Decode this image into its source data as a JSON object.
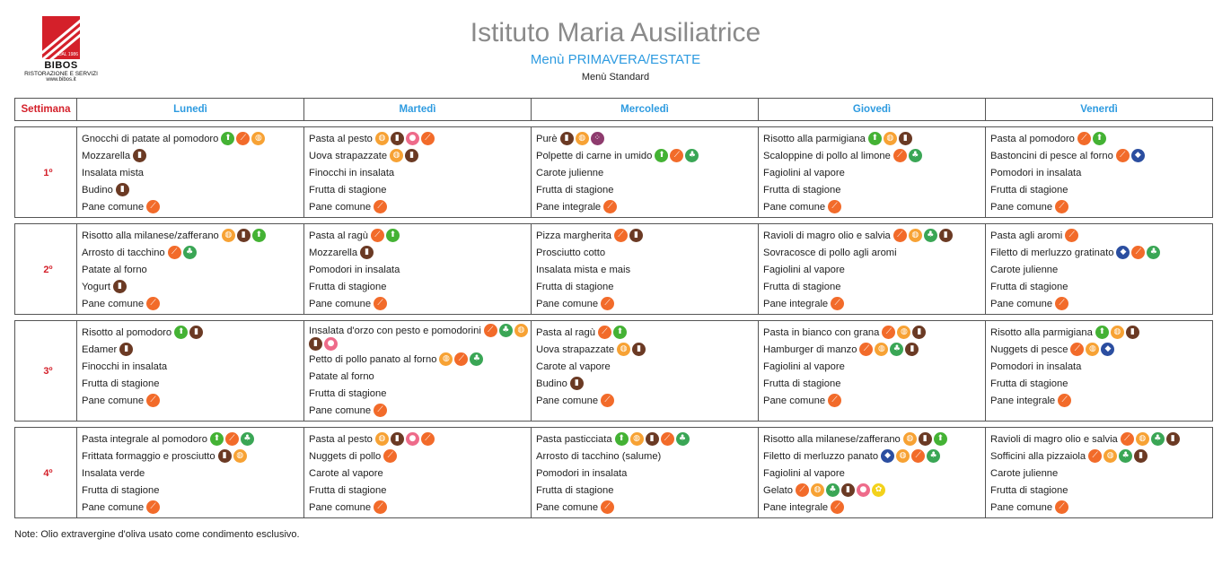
{
  "logo": {
    "badge": "DAL 1986",
    "name": "BIBOS",
    "sub": "RISTORAZIONE E SERVIZI",
    "web": "www.bibos.it"
  },
  "header": {
    "title": "Istituto Maria Ausiliatrice",
    "subtitle": "Menù PRIMAVERA/ESTATE",
    "subtitle2": "Menù Standard"
  },
  "columns": [
    "Settimana",
    "Lunedì",
    "Martedì",
    "Mercoledì",
    "Giovedì",
    "Venerdì"
  ],
  "allergen_colors": {
    "gluten": "#f26b2a",
    "milk": "#6b3a24",
    "egg": "#f7a234",
    "celery": "#3aa655",
    "nuts": "#44b234",
    "fish": "#2b4ea0",
    "soy": "#ee6b8a",
    "sesame": "#8e3b6e",
    "mustard": "#f3d21b"
  },
  "weeks": [
    {
      "label": "1º",
      "days": [
        [
          {
            "text": "Gnocchi di patate al pomodoro",
            "icons": [
              "nuts",
              "gluten",
              "egg"
            ]
          },
          {
            "text": "Mozzarella",
            "icons": [
              "milk"
            ]
          },
          {
            "text": "Insalata mista",
            "icons": []
          },
          {
            "text": "Budino",
            "icons": [
              "milk"
            ]
          },
          {
            "text": "Pane comune",
            "icons": [
              "gluten"
            ]
          }
        ],
        [
          {
            "text": "Pasta al pesto",
            "icons": [
              "egg",
              "milk",
              "soy",
              "gluten"
            ]
          },
          {
            "text": "Uova strapazzate",
            "icons": [
              "egg",
              "milk"
            ]
          },
          {
            "text": "Finocchi in insalata",
            "icons": []
          },
          {
            "text": "Frutta di stagione",
            "icons": []
          },
          {
            "text": "Pane comune",
            "icons": [
              "gluten"
            ]
          }
        ],
        [
          {
            "text": "Purè",
            "icons": [
              "milk",
              "egg",
              "sesame"
            ]
          },
          {
            "text": "Polpette di carne in umido",
            "icons": [
              "nuts",
              "gluten",
              "celery"
            ]
          },
          {
            "text": "Carote julienne",
            "icons": []
          },
          {
            "text": "Frutta di stagione",
            "icons": []
          },
          {
            "text": "Pane integrale",
            "icons": [
              "gluten"
            ]
          }
        ],
        [
          {
            "text": "Risotto alla parmigiana",
            "icons": [
              "nuts",
              "egg",
              "milk"
            ]
          },
          {
            "text": "Scaloppine di pollo al limone",
            "icons": [
              "gluten",
              "celery"
            ]
          },
          {
            "text": "Fagiolini al vapore",
            "icons": []
          },
          {
            "text": "Frutta di stagione",
            "icons": []
          },
          {
            "text": "Pane comune",
            "icons": [
              "gluten"
            ]
          }
        ],
        [
          {
            "text": "Pasta al pomodoro",
            "icons": [
              "gluten",
              "nuts"
            ]
          },
          {
            "text": "Bastoncini di pesce al forno",
            "icons": [
              "gluten",
              "fish"
            ]
          },
          {
            "text": "Pomodori in insalata",
            "icons": []
          },
          {
            "text": "Frutta di stagione",
            "icons": []
          },
          {
            "text": "Pane comune",
            "icons": [
              "gluten"
            ]
          }
        ]
      ]
    },
    {
      "label": "2º",
      "days": [
        [
          {
            "text": "Risotto alla milanese/zafferano",
            "icons": [
              "egg",
              "milk",
              "nuts"
            ]
          },
          {
            "text": "Arrosto di tacchino",
            "icons": [
              "gluten",
              "celery"
            ]
          },
          {
            "text": "Patate al forno",
            "icons": []
          },
          {
            "text": "Yogurt",
            "icons": [
              "milk"
            ]
          },
          {
            "text": "Pane comune",
            "icons": [
              "gluten"
            ]
          }
        ],
        [
          {
            "text": "Pasta al ragù",
            "icons": [
              "gluten",
              "nuts"
            ]
          },
          {
            "text": "Mozzarella",
            "icons": [
              "milk"
            ]
          },
          {
            "text": "Pomodori in insalata",
            "icons": []
          },
          {
            "text": "Frutta di stagione",
            "icons": []
          },
          {
            "text": "Pane comune",
            "icons": [
              "gluten"
            ]
          }
        ],
        [
          {
            "text": "Pizza margherita",
            "icons": [
              "gluten",
              "milk"
            ]
          },
          {
            "text": "Prosciutto cotto",
            "icons": []
          },
          {
            "text": "Insalata mista e mais",
            "icons": []
          },
          {
            "text": "Frutta di stagione",
            "icons": []
          },
          {
            "text": "Pane comune",
            "icons": [
              "gluten"
            ]
          }
        ],
        [
          {
            "text": "Ravioli di magro olio e salvia",
            "icons": [
              "gluten",
              "egg",
              "celery",
              "milk"
            ]
          },
          {
            "text": "Sovracosce di pollo agli aromi",
            "icons": []
          },
          {
            "text": "Fagiolini al vapore",
            "icons": []
          },
          {
            "text": "Frutta di stagione",
            "icons": []
          },
          {
            "text": "Pane integrale",
            "icons": [
              "gluten"
            ]
          }
        ],
        [
          {
            "text": "Pasta agli aromi",
            "icons": [
              "gluten"
            ]
          },
          {
            "text": "Filetto di merluzzo gratinato",
            "icons": [
              "fish",
              "gluten",
              "celery"
            ]
          },
          {
            "text": "Carote julienne",
            "icons": []
          },
          {
            "text": "Frutta di stagione",
            "icons": []
          },
          {
            "text": "Pane comune",
            "icons": [
              "gluten"
            ]
          }
        ]
      ]
    },
    {
      "label": "3º",
      "days": [
        [
          {
            "text": "Risotto al pomodoro",
            "icons": [
              "nuts",
              "milk"
            ]
          },
          {
            "text": "Edamer",
            "icons": [
              "milk"
            ]
          },
          {
            "text": "Finocchi in insalata",
            "icons": []
          },
          {
            "text": "Frutta di stagione",
            "icons": []
          },
          {
            "text": "Pane comune",
            "icons": [
              "gluten"
            ]
          }
        ],
        [
          {
            "text": "Insalata d'orzo con pesto e pomodorini",
            "icons": [
              "gluten",
              "celery",
              "egg",
              "milk",
              "soy"
            ]
          },
          {
            "text": "Petto di pollo panato al forno",
            "icons": [
              "egg",
              "gluten",
              "celery"
            ]
          },
          {
            "text": "Patate al forno",
            "icons": []
          },
          {
            "text": "Frutta di stagione",
            "icons": []
          },
          {
            "text": "Pane comune",
            "icons": [
              "gluten"
            ]
          }
        ],
        [
          {
            "text": "Pasta al ragù",
            "icons": [
              "gluten",
              "nuts"
            ]
          },
          {
            "text": "Uova strapazzate",
            "icons": [
              "egg",
              "milk"
            ]
          },
          {
            "text": "Carote al vapore",
            "icons": []
          },
          {
            "text": "Budino",
            "icons": [
              "milk"
            ]
          },
          {
            "text": "Pane comune",
            "icons": [
              "gluten"
            ]
          }
        ],
        [
          {
            "text": "Pasta in bianco con grana",
            "icons": [
              "gluten",
              "egg",
              "milk"
            ]
          },
          {
            "text": "Hamburger di manzo",
            "icons": [
              "gluten",
              "egg",
              "celery",
              "milk"
            ]
          },
          {
            "text": "Fagiolini al vapore",
            "icons": []
          },
          {
            "text": "Frutta di stagione",
            "icons": []
          },
          {
            "text": "Pane comune",
            "icons": [
              "gluten"
            ]
          }
        ],
        [
          {
            "text": "Risotto alla parmigiana",
            "icons": [
              "nuts",
              "egg",
              "milk"
            ]
          },
          {
            "text": "Nuggets di pesce",
            "icons": [
              "gluten",
              "egg",
              "fish"
            ]
          },
          {
            "text": "Pomodori in insalata",
            "icons": []
          },
          {
            "text": "Frutta di stagione",
            "icons": []
          },
          {
            "text": "Pane integrale",
            "icons": [
              "gluten"
            ]
          }
        ]
      ]
    },
    {
      "label": "4º",
      "days": [
        [
          {
            "text": "Pasta integrale al pomodoro",
            "icons": [
              "nuts",
              "gluten",
              "celery"
            ]
          },
          {
            "text": "Frittata formaggio e prosciutto",
            "icons": [
              "milk",
              "egg"
            ]
          },
          {
            "text": "Insalata verde",
            "icons": []
          },
          {
            "text": "Frutta di stagione",
            "icons": []
          },
          {
            "text": "Pane comune",
            "icons": [
              "gluten"
            ]
          }
        ],
        [
          {
            "text": "Pasta al pesto",
            "icons": [
              "egg",
              "milk",
              "soy",
              "gluten"
            ]
          },
          {
            "text": "Nuggets di pollo",
            "icons": [
              "gluten"
            ]
          },
          {
            "text": "Carote al vapore",
            "icons": []
          },
          {
            "text": "Frutta di stagione",
            "icons": []
          },
          {
            "text": "Pane comune",
            "icons": [
              "gluten"
            ]
          }
        ],
        [
          {
            "text": "Pasta pasticciata",
            "icons": [
              "nuts",
              "egg",
              "milk",
              "gluten",
              "celery"
            ]
          },
          {
            "text": "Arrosto di tacchino (salume)",
            "icons": []
          },
          {
            "text": "Pomodori in insalata",
            "icons": []
          },
          {
            "text": "Frutta di stagione",
            "icons": []
          },
          {
            "text": "Pane comune",
            "icons": [
              "gluten"
            ]
          }
        ],
        [
          {
            "text": "Risotto alla milanese/zafferano",
            "icons": [
              "egg",
              "milk",
              "nuts"
            ]
          },
          {
            "text": "Filetto di merluzzo panato",
            "icons": [
              "fish",
              "egg",
              "gluten",
              "celery"
            ]
          },
          {
            "text": "Fagiolini al vapore",
            "icons": []
          },
          {
            "text": "Gelato",
            "icons": [
              "gluten",
              "egg",
              "celery",
              "milk",
              "soy",
              "mustard"
            ]
          },
          {
            "text": "Pane integrale",
            "icons": [
              "gluten"
            ]
          }
        ],
        [
          {
            "text": "Ravioli di magro olio e salvia",
            "icons": [
              "gluten",
              "egg",
              "celery",
              "milk"
            ]
          },
          {
            "text": "Sofficini alla pizzaiola",
            "icons": [
              "gluten",
              "egg",
              "celery",
              "milk"
            ]
          },
          {
            "text": "Carote julienne",
            "icons": []
          },
          {
            "text": "Frutta di stagione",
            "icons": []
          },
          {
            "text": "Pane comune",
            "icons": [
              "gluten"
            ]
          }
        ]
      ]
    }
  ],
  "note": "Note: Olio extravergine d'oliva usato come condimento esclusivo."
}
